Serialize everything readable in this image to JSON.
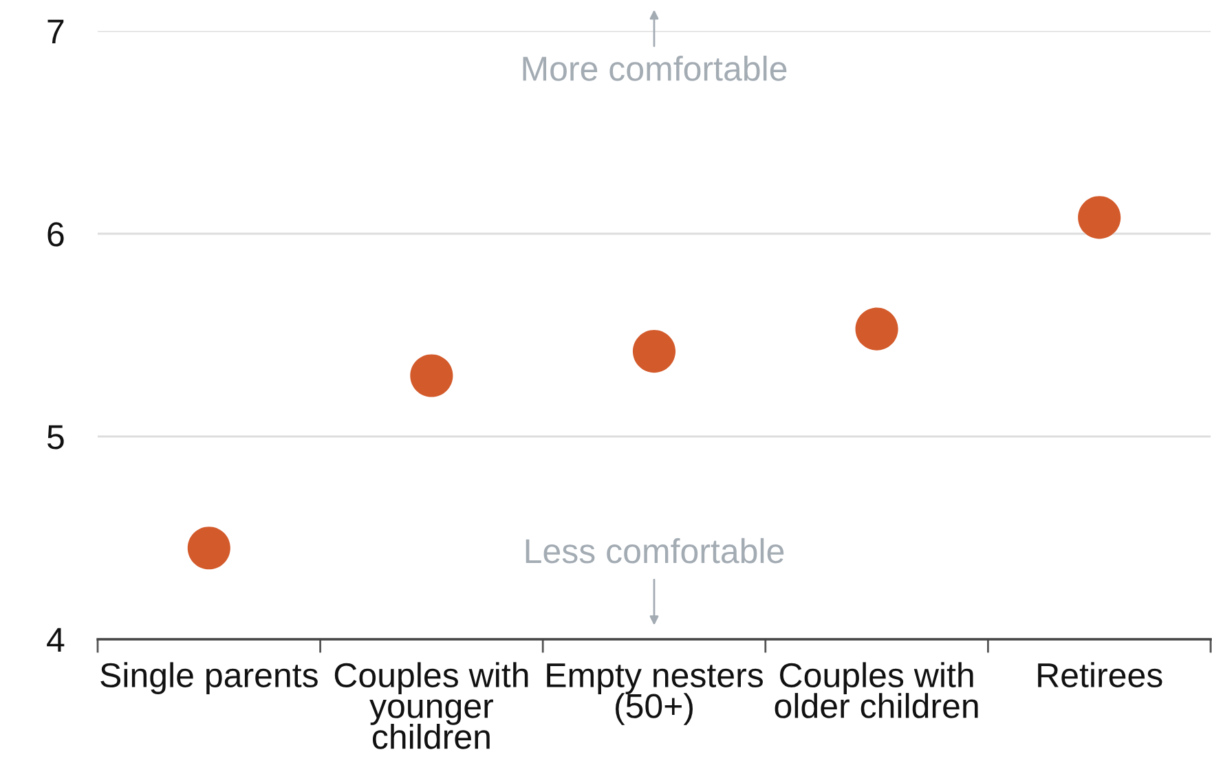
{
  "chart_data": {
    "type": "scatter",
    "categories": [
      "Single parents",
      "Couples with younger children",
      "Empty nesters (50+)",
      "Couples with older children",
      "Retirees"
    ],
    "values": [
      4.45,
      5.3,
      5.42,
      5.53,
      6.08
    ],
    "color": "#d35a2b",
    "marker": "circle",
    "ylim": [
      4,
      7
    ],
    "yticks": [
      4,
      5,
      6,
      7
    ],
    "grid": "y",
    "annotations": [
      "More comfortable",
      "Less comfortable"
    ]
  }
}
